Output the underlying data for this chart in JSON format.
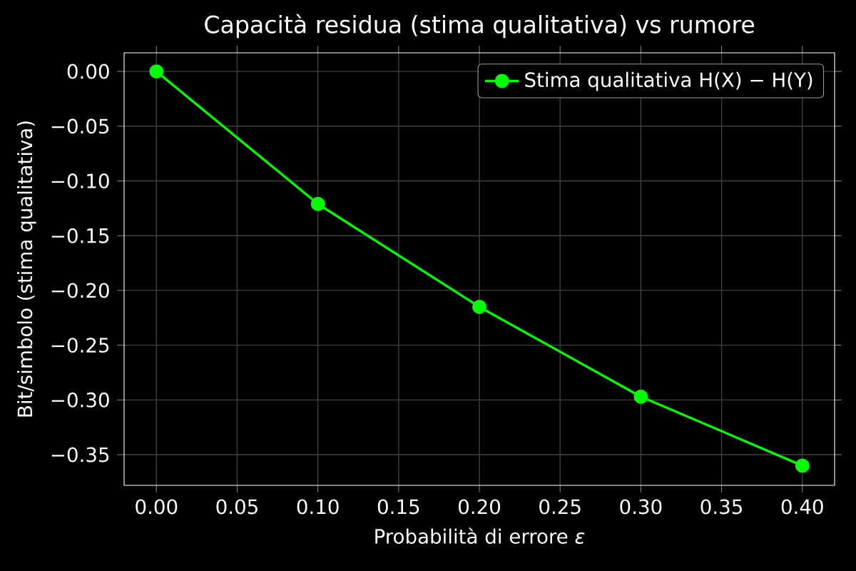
{
  "chart_data": {
    "type": "line",
    "title": "Capacità residua (stima qualitativa) vs rumore",
    "xlabel": "Probabilità di errore *ε*",
    "ylabel": "Bit/simbolo (stima qualitativa)",
    "x": [
      0.0,
      0.1,
      0.2,
      0.3,
      0.4
    ],
    "series": [
      {
        "name": "Stima qualitativa H(X) − H(Y)",
        "color": "#00ff00",
        "values": [
          0.0,
          -0.121,
          -0.215,
          -0.297,
          -0.36
        ]
      }
    ],
    "xlim": [
      -0.02,
      0.42
    ],
    "ylim": [
      -0.378,
      0.017
    ],
    "xticks": [
      {
        "value": 0.0,
        "label": "0.00"
      },
      {
        "value": 0.05,
        "label": "0.05"
      },
      {
        "value": 0.1,
        "label": "0.10"
      },
      {
        "value": 0.15,
        "label": "0.15"
      },
      {
        "value": 0.2,
        "label": "0.20"
      },
      {
        "value": 0.25,
        "label": "0.25"
      },
      {
        "value": 0.3,
        "label": "0.30"
      },
      {
        "value": 0.35,
        "label": "0.35"
      },
      {
        "value": 0.4,
        "label": "0.40"
      }
    ],
    "yticks": [
      {
        "value": 0.0,
        "label": "0.00"
      },
      {
        "value": -0.05,
        "label": "−0.05"
      },
      {
        "value": -0.1,
        "label": "−0.10"
      },
      {
        "value": -0.15,
        "label": "−0.15"
      },
      {
        "value": -0.2,
        "label": "−0.20"
      },
      {
        "value": -0.25,
        "label": "−0.25"
      },
      {
        "value": -0.3,
        "label": "−0.30"
      },
      {
        "value": -0.35,
        "label": "−0.35"
      }
    ],
    "grid": true,
    "legend": "top right",
    "marker": "circle",
    "line_style": "solid"
  }
}
